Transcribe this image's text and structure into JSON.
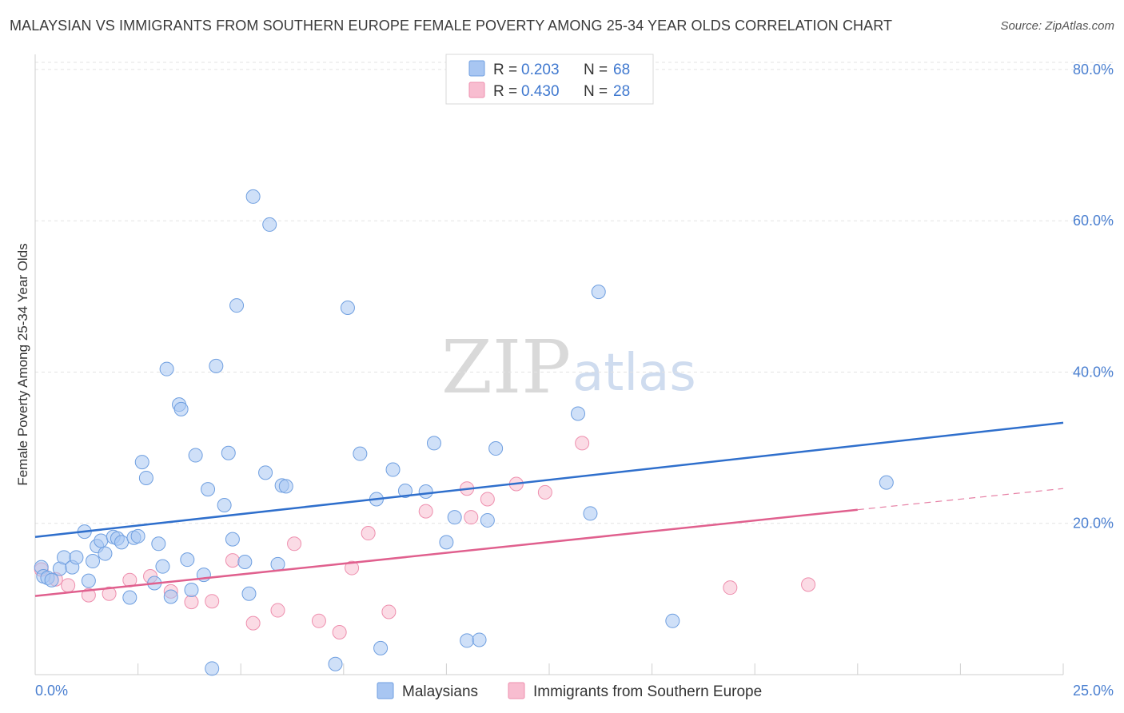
{
  "header": {
    "title": "MALAYSIAN VS IMMIGRANTS FROM SOUTHERN EUROPE FEMALE POVERTY AMONG 25-34 YEAR OLDS CORRELATION CHART",
    "source": "Source: ZipAtlas.com"
  },
  "watermark": {
    "zip": "ZIP",
    "atlas": "atlas"
  },
  "legend": {
    "r_label": "R =",
    "n_label": "N =",
    "rows": [
      {
        "r": "0.203",
        "n": "68"
      },
      {
        "r": "0.430",
        "n": "28"
      }
    ]
  },
  "colors": {
    "blue_fill": "#a8c6f2",
    "blue_stroke": "#6f9fe0",
    "blue_line": "#2f6fcc",
    "pink_fill": "#f8bdd0",
    "pink_stroke": "#ee8fae",
    "pink_line": "#e0608e",
    "grid": "#e3e3e3",
    "axis_text": "#4a7fd0"
  },
  "chart_data": {
    "type": "scatter",
    "title": "MALAYSIAN VS IMMIGRANTS FROM SOUTHERN EUROPE FEMALE POVERTY AMONG 25-34 YEAR OLDS CORRELATION CHART",
    "xlabel": "",
    "ylabel": "Female Poverty Among 25-34 Year Olds",
    "xlim": [
      0,
      25
    ],
    "ylim": [
      0,
      82
    ],
    "x_tick_labels": [
      "0.0%",
      "25.0%"
    ],
    "y_ticks": [
      20,
      40,
      60,
      80
    ],
    "y_tick_labels": [
      "20.0%",
      "40.0%",
      "60.0%",
      "80.0%"
    ],
    "grid": true,
    "legend_position": "top-center",
    "series": [
      {
        "name": "Malaysians",
        "r": 0.203,
        "n": 68,
        "trend": {
          "x": [
            0,
            25
          ],
          "y": [
            18.2,
            33.3
          ]
        },
        "points": [
          [
            0.15,
            14.2
          ],
          [
            0.2,
            13.0
          ],
          [
            0.3,
            12.8
          ],
          [
            0.4,
            12.5
          ],
          [
            0.6,
            14.0
          ],
          [
            0.7,
            15.5
          ],
          [
            0.9,
            14.2
          ],
          [
            1.0,
            15.5
          ],
          [
            1.2,
            18.9
          ],
          [
            1.3,
            12.4
          ],
          [
            1.4,
            15.0
          ],
          [
            1.5,
            17.0
          ],
          [
            1.6,
            17.7
          ],
          [
            1.7,
            16.0
          ],
          [
            1.9,
            18.2
          ],
          [
            2.0,
            18.0
          ],
          [
            2.1,
            17.5
          ],
          [
            2.3,
            10.2
          ],
          [
            2.4,
            18.1
          ],
          [
            2.5,
            18.3
          ],
          [
            2.6,
            28.1
          ],
          [
            2.7,
            26.0
          ],
          [
            2.9,
            12.1
          ],
          [
            3.0,
            17.3
          ],
          [
            3.1,
            14.3
          ],
          [
            3.2,
            40.4
          ],
          [
            3.3,
            10.3
          ],
          [
            3.5,
            35.7
          ],
          [
            3.55,
            35.1
          ],
          [
            3.7,
            15.2
          ],
          [
            3.8,
            11.2
          ],
          [
            3.9,
            29.0
          ],
          [
            4.1,
            13.2
          ],
          [
            4.2,
            24.5
          ],
          [
            4.3,
            0.8
          ],
          [
            4.4,
            40.8
          ],
          [
            4.6,
            22.4
          ],
          [
            4.7,
            29.3
          ],
          [
            4.8,
            17.9
          ],
          [
            4.9,
            48.8
          ],
          [
            5.1,
            14.9
          ],
          [
            5.2,
            10.7
          ],
          [
            5.3,
            63.2
          ],
          [
            5.6,
            26.7
          ],
          [
            5.7,
            59.5
          ],
          [
            5.9,
            14.6
          ],
          [
            6.0,
            25.0
          ],
          [
            6.1,
            24.9
          ],
          [
            7.3,
            1.4
          ],
          [
            7.6,
            48.5
          ],
          [
            7.9,
            29.2
          ],
          [
            8.3,
            23.2
          ],
          [
            8.4,
            3.5
          ],
          [
            8.7,
            27.1
          ],
          [
            9.0,
            24.3
          ],
          [
            9.7,
            30.6
          ],
          [
            10.0,
            17.5
          ],
          [
            10.2,
            20.8
          ],
          [
            10.5,
            4.5
          ],
          [
            10.8,
            4.6
          ],
          [
            11.0,
            20.4
          ],
          [
            11.2,
            29.9
          ],
          [
            13.2,
            34.5
          ],
          [
            13.5,
            21.3
          ],
          [
            13.7,
            50.6
          ],
          [
            15.5,
            7.1
          ],
          [
            20.7,
            25.4
          ],
          [
            9.5,
            24.2
          ]
        ]
      },
      {
        "name": "Immigrants from Southern Europe",
        "r": 0.43,
        "n": 28,
        "trend": {
          "x": [
            0,
            20
          ],
          "y": [
            10.4,
            21.8
          ]
        },
        "trend_dashed": {
          "x": [
            20,
            25
          ],
          "y": [
            21.8,
            24.6
          ]
        },
        "points": [
          [
            0.15,
            13.9
          ],
          [
            0.5,
            12.6
          ],
          [
            0.8,
            11.8
          ],
          [
            1.3,
            10.5
          ],
          [
            1.8,
            10.7
          ],
          [
            2.3,
            12.5
          ],
          [
            2.8,
            13.0
          ],
          [
            3.3,
            11.0
          ],
          [
            3.8,
            9.6
          ],
          [
            4.3,
            9.7
          ],
          [
            4.8,
            15.1
          ],
          [
            5.3,
            6.8
          ],
          [
            5.9,
            8.5
          ],
          [
            6.3,
            17.3
          ],
          [
            6.9,
            7.1
          ],
          [
            7.4,
            5.6
          ],
          [
            7.7,
            14.1
          ],
          [
            8.1,
            18.7
          ],
          [
            8.6,
            8.3
          ],
          [
            9.5,
            21.6
          ],
          [
            10.5,
            24.6
          ],
          [
            10.6,
            20.8
          ],
          [
            11.0,
            23.2
          ],
          [
            11.7,
            25.2
          ],
          [
            12.4,
            24.1
          ],
          [
            13.3,
            30.6
          ],
          [
            16.9,
            11.5
          ],
          [
            18.8,
            11.9
          ]
        ]
      }
    ]
  },
  "bottom_legend": {
    "items": [
      {
        "label": "Malaysians"
      },
      {
        "label": "Immigrants from Southern Europe"
      }
    ]
  }
}
